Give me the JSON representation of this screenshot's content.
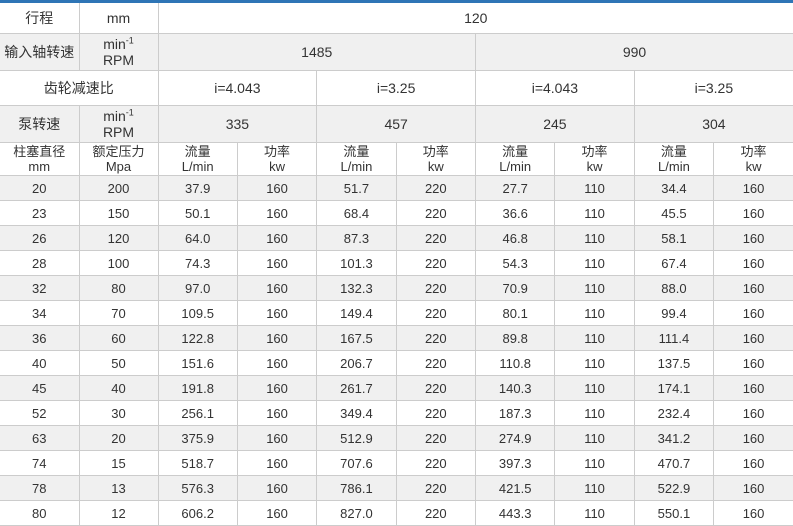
{
  "theme": {
    "accent_color": "#2e75b6",
    "border_color": "#cccccc",
    "stripe_color": "#f0f0f0",
    "text_color": "#333333"
  },
  "rows": {
    "stroke": {
      "label": "行程",
      "unit": "mm",
      "value": "120"
    },
    "input_speed": {
      "label": "输入轴转速",
      "unit_main": "min",
      "unit_sup": "-1",
      "unit_line2": "RPM",
      "values": [
        "1485",
        "990"
      ]
    },
    "gear_ratio": {
      "label": "齿轮减速比",
      "values": [
        "i=4.043",
        "i=3.25",
        "i=4.043",
        "i=3.25"
      ]
    },
    "pump_speed": {
      "label": "泵转速",
      "unit_main": "min",
      "unit_sup": "-1",
      "unit_line2": "RPM",
      "values": [
        "335",
        "457",
        "245",
        "304"
      ]
    }
  },
  "column_headers": [
    {
      "line1": "柱塞直径",
      "line2": "mm"
    },
    {
      "line1": "额定压力",
      "line2": "Mpa"
    },
    {
      "line1": "流量",
      "line2": "L/min"
    },
    {
      "line1": "功率",
      "line2": "kw"
    },
    {
      "line1": "流量",
      "line2": "L/min"
    },
    {
      "line1": "功率",
      "line2": "kw"
    },
    {
      "line1": "流量",
      "line2": "L/min"
    },
    {
      "line1": "功率",
      "line2": "kw"
    },
    {
      "line1": "流量",
      "line2": "L/min"
    },
    {
      "line1": "功率",
      "line2": "kw"
    }
  ],
  "data_rows": [
    [
      "20",
      "200",
      "37.9",
      "160",
      "51.7",
      "220",
      "27.7",
      "110",
      "34.4",
      "160"
    ],
    [
      "23",
      "150",
      "50.1",
      "160",
      "68.4",
      "220",
      "36.6",
      "110",
      "45.5",
      "160"
    ],
    [
      "26",
      "120",
      "64.0",
      "160",
      "87.3",
      "220",
      "46.8",
      "110",
      "58.1",
      "160"
    ],
    [
      "28",
      "100",
      "74.3",
      "160",
      "101.3",
      "220",
      "54.3",
      "110",
      "67.4",
      "160"
    ],
    [
      "32",
      "80",
      "97.0",
      "160",
      "132.3",
      "220",
      "70.9",
      "110",
      "88.0",
      "160"
    ],
    [
      "34",
      "70",
      "109.5",
      "160",
      "149.4",
      "220",
      "80.1",
      "110",
      "99.4",
      "160"
    ],
    [
      "36",
      "60",
      "122.8",
      "160",
      "167.5",
      "220",
      "89.8",
      "110",
      "111.4",
      "160"
    ],
    [
      "40",
      "50",
      "151.6",
      "160",
      "206.7",
      "220",
      "110.8",
      "110",
      "137.5",
      "160"
    ],
    [
      "45",
      "40",
      "191.8",
      "160",
      "261.7",
      "220",
      "140.3",
      "110",
      "174.1",
      "160"
    ],
    [
      "52",
      "30",
      "256.1",
      "160",
      "349.4",
      "220",
      "187.3",
      "110",
      "232.4",
      "160"
    ],
    [
      "63",
      "20",
      "375.9",
      "160",
      "512.9",
      "220",
      "274.9",
      "110",
      "341.2",
      "160"
    ],
    [
      "74",
      "15",
      "518.7",
      "160",
      "707.6",
      "220",
      "397.3",
      "110",
      "470.7",
      "160"
    ],
    [
      "78",
      "13",
      "576.3",
      "160",
      "786.1",
      "220",
      "421.5",
      "110",
      "522.9",
      "160"
    ],
    [
      "80",
      "12",
      "606.2",
      "160",
      "827.0",
      "220",
      "443.3",
      "110",
      "550.1",
      "160"
    ]
  ]
}
